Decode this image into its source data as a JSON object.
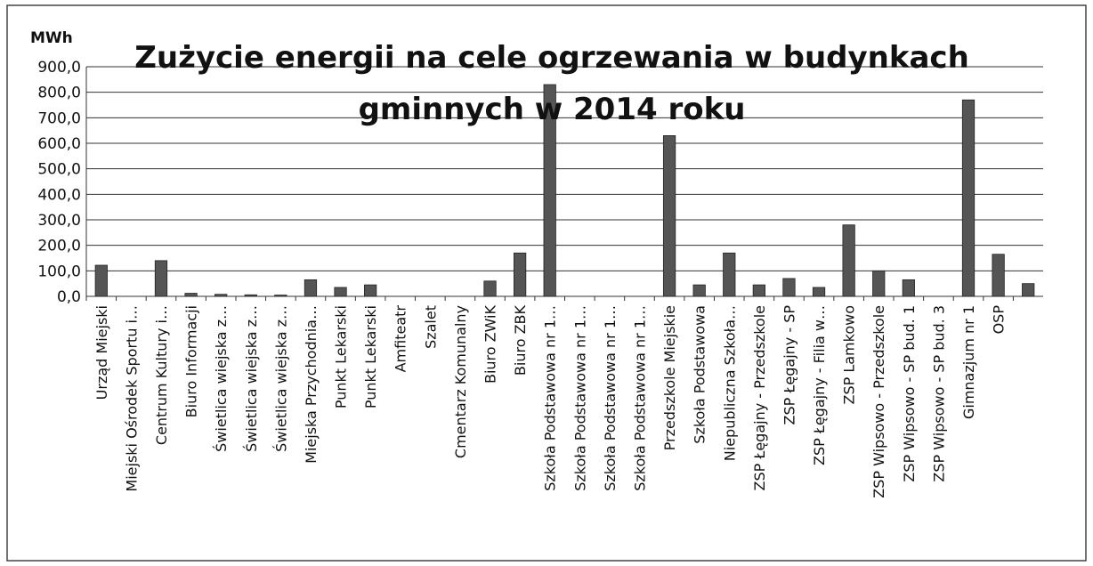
{
  "chart_data": {
    "type": "bar",
    "title": "Zużycie energii na cele ogrzewania w budynkach gminnych w 2014 roku",
    "y_label": "MWh",
    "categories": [
      "Urząd Miejski",
      "Miejski Ośrodek Sportu i…",
      "Centrum Kultury i…",
      "Biuro Informacji",
      "Świetlica wiejska z…",
      "Świetlica wiejska z…",
      "Świetlica wiejska z…",
      "Miejska Przychodnia…",
      "Punkt Lekarski",
      "Punkt Lekarski",
      "Amfiteatr",
      "Szalet",
      "Cmentarz Komunalny",
      "Biuro ZWiK",
      "Biuro ZBK",
      "Szkoła Podstawowa nr 1…",
      "Szkoła Podstawowa nr 1…",
      "Szkoła Podstawowa nr 1…",
      "Szkoła Podstawowa nr 1…",
      "Przedszkole Miejskie",
      "Szkoła Podstawowa",
      "Niepubliczna Szkoła…",
      "ZSP Łęgajny - Przedszkole",
      "ZSP Łęgajny - SP",
      "ZSP Łęgajny - Filia w…",
      "ZSP Lamkowo",
      "ZSP Wipsowo - Przedszkole",
      "ZSP Wipsowo - SP bud. 1",
      "ZSP Wipsowo - SP bud. 3",
      "Gimnazjum nr 1",
      "OSP",
      null
    ],
    "values": [
      122,
      0,
      140,
      12,
      8,
      6,
      5,
      65,
      35,
      45,
      0,
      0,
      0,
      60,
      170,
      830,
      0,
      0,
      0,
      630,
      45,
      170,
      45,
      70,
      35,
      280,
      100,
      65,
      0,
      770,
      165,
      50
    ],
    "color": "#555555",
    "ylim": [
      0,
      900
    ],
    "yticks": [
      {
        "value": 0,
        "label": "0,0"
      },
      {
        "value": 100,
        "label": "100,0"
      },
      {
        "value": 200,
        "label": "200,0"
      },
      {
        "value": 300,
        "label": "300,0"
      },
      {
        "value": 400,
        "label": "400,0"
      },
      {
        "value": 500,
        "label": "500,0"
      },
      {
        "value": 600,
        "label": "600,0"
      },
      {
        "value": 700,
        "label": "700,0"
      },
      {
        "value": 800,
        "label": "800,0"
      },
      {
        "value": 900,
        "label": "900,0"
      }
    ],
    "grid": true
  }
}
